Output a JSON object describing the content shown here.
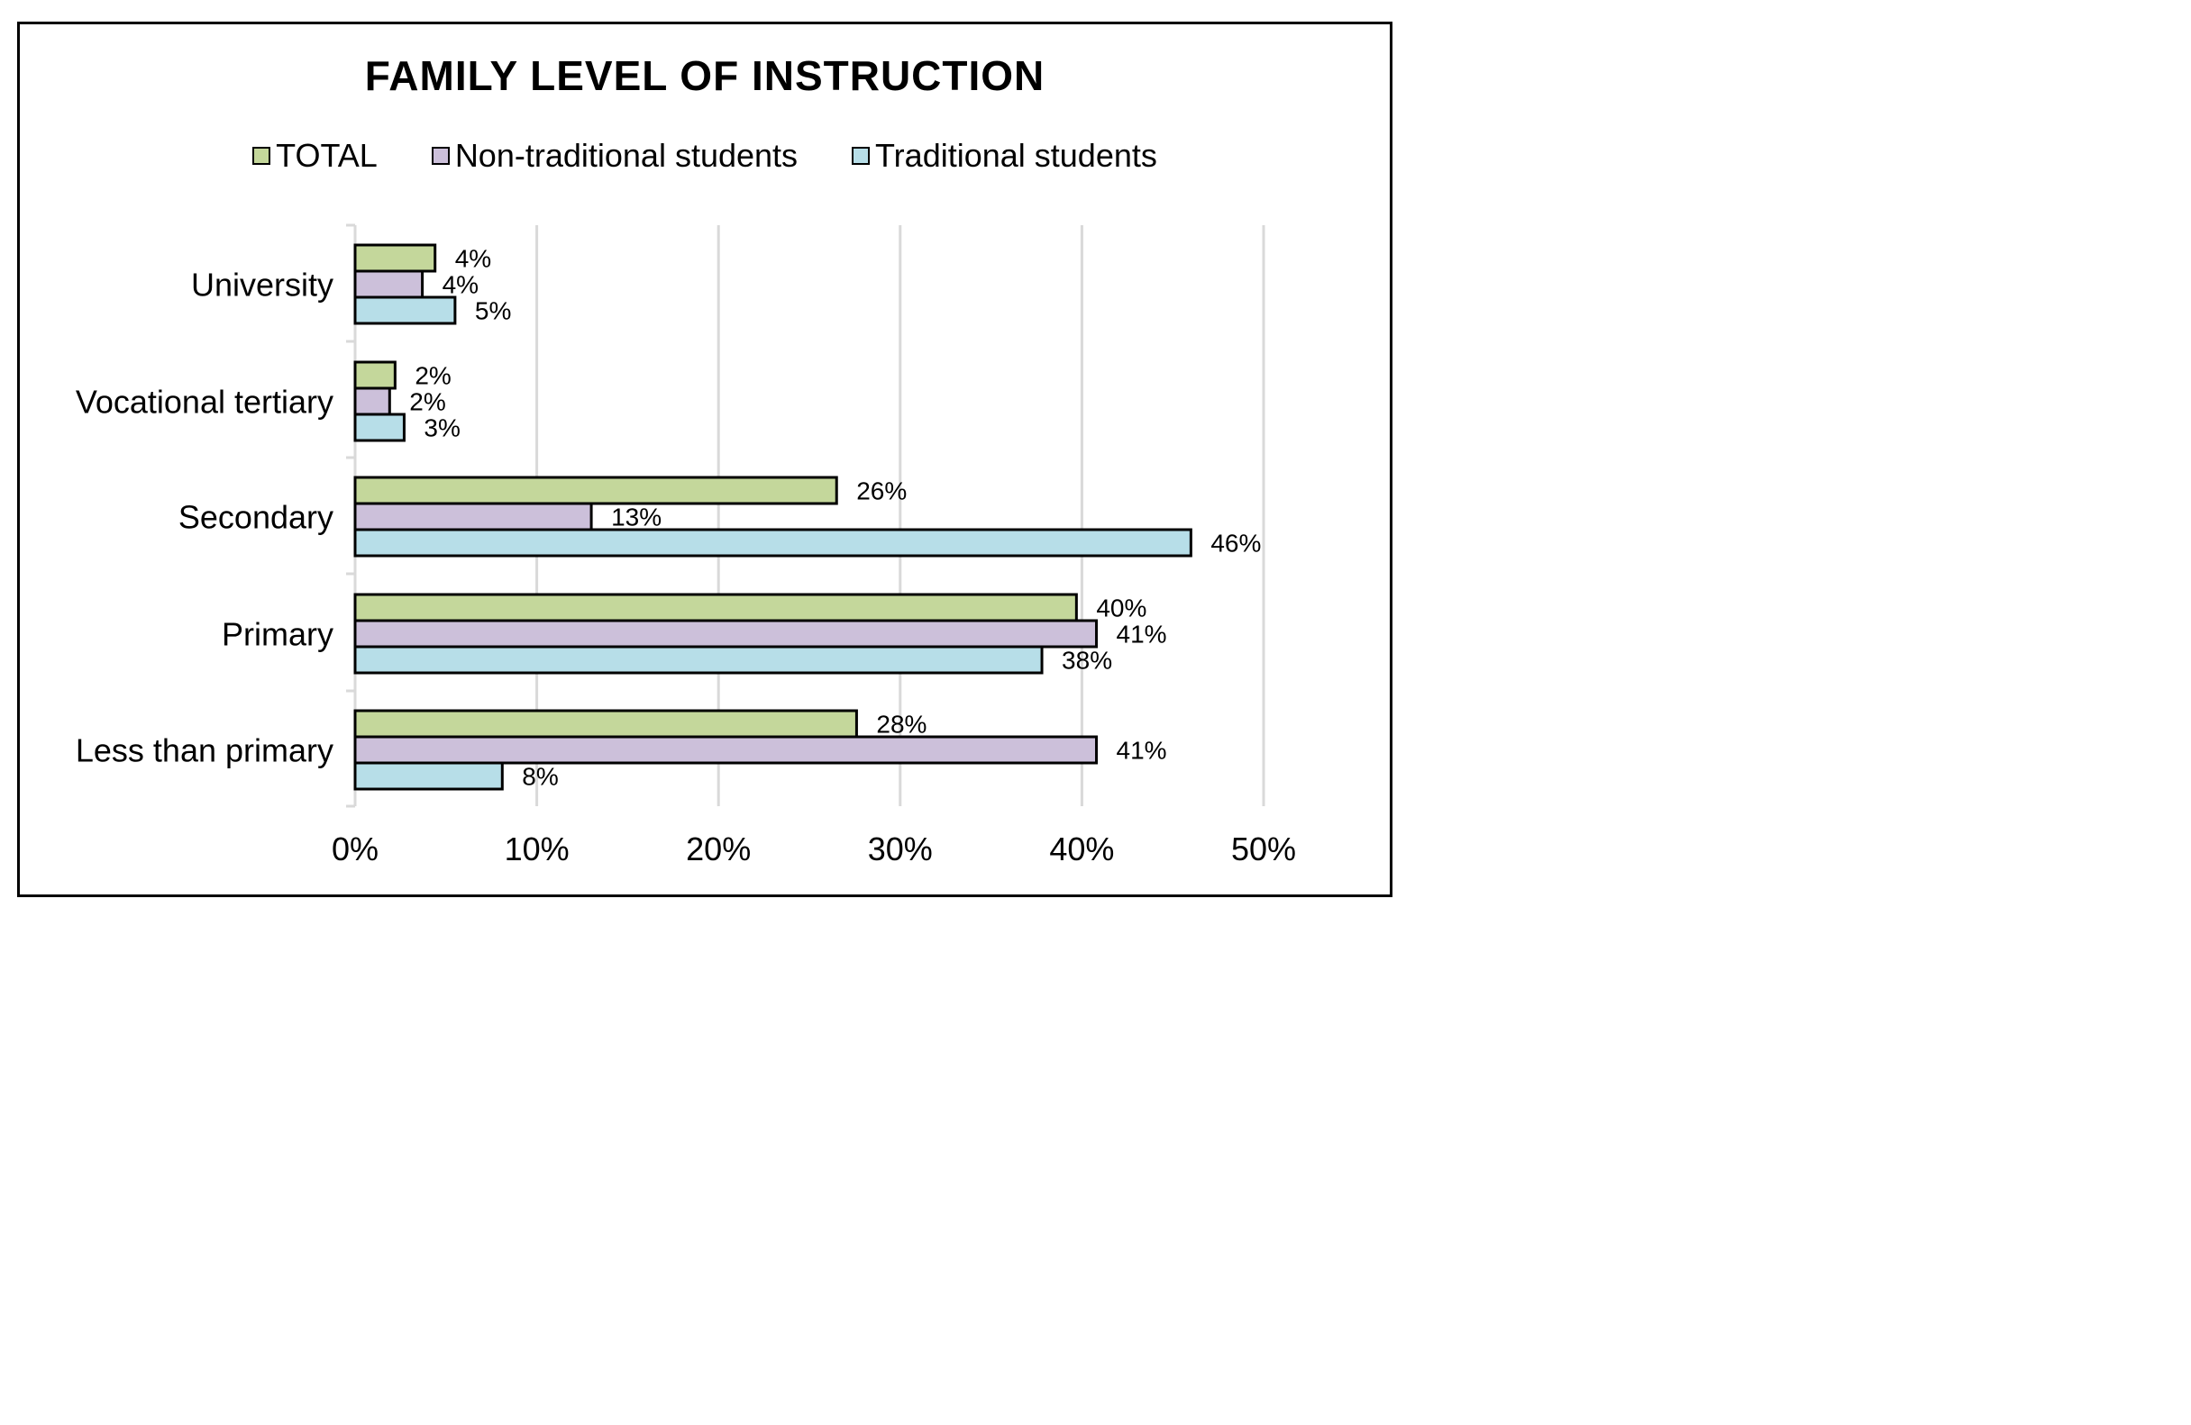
{
  "chart_data": {
    "type": "bar",
    "orientation": "horizontal",
    "title": "FAMILY LEVEL OF INSTRUCTION",
    "categories": [
      "University",
      "Vocational tertiary",
      "Secondary",
      "Primary",
      "Less than primary"
    ],
    "series": [
      {
        "name": "TOTAL",
        "color": "#c4d79b",
        "values": [
          4.4,
          2.2,
          26.5,
          39.7,
          27.6
        ],
        "labels": [
          "4%",
          "2%",
          "26%",
          "40%",
          "28%"
        ]
      },
      {
        "name": "Non-traditional students",
        "color": "#ccc0da",
        "values": [
          3.7,
          1.9,
          13.0,
          40.8,
          40.8
        ],
        "labels": [
          "4%",
          "2%",
          "13%",
          "41%",
          "41%"
        ]
      },
      {
        "name": "Traditional students",
        "color": "#b7dee8",
        "values": [
          5.5,
          2.7,
          46.0,
          37.8,
          8.1
        ],
        "labels": [
          "5%",
          "3%",
          "46%",
          "38%",
          "8%"
        ]
      }
    ],
    "xlim": [
      0,
      50
    ],
    "xticks": [
      "0%",
      "10%",
      "20%",
      "30%",
      "40%",
      "50%"
    ],
    "grid": true,
    "legend_position": "top"
  }
}
